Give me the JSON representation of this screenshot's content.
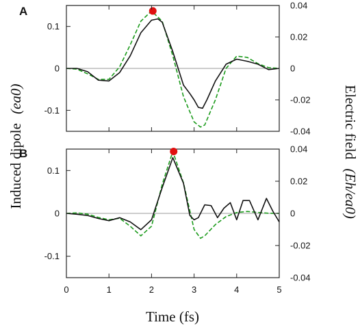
{
  "colors": {
    "dipole": "#111111",
    "field": "#1a9a1a",
    "marker": "#e01010",
    "frame": "#222222",
    "zero_line": "#999999"
  },
  "chart_data": {
    "type": "line",
    "xlabel": "Time (fs)",
    "ylabel_left": "Induced dipole",
    "ylabel_left_unit": "(ea0)",
    "ylabel_right": "Electric field",
    "ylabel_right_unit": "(Eh/ea0)",
    "xlim": [
      0,
      5
    ],
    "x_ticks": [
      0,
      1,
      2,
      3,
      4,
      5
    ],
    "x_tick_labels": [
      "0",
      "1",
      "2",
      "3",
      "4",
      "5"
    ],
    "panels": [
      {
        "label": "A",
        "ylim_left": [
          -0.15,
          0.15
        ],
        "ylim_right": [
          -0.04,
          0.04
        ],
        "left_ticks": [
          0.1,
          0,
          -0.1
        ],
        "left_tick_labels": [
          "0.1",
          "0",
          "-0.1"
        ],
        "right_ticks": [
          0.04,
          0.02,
          0,
          -0.02,
          -0.04
        ],
        "right_tick_labels": [
          "0.04",
          "0.02",
          "0",
          "-0.02",
          "-0.04"
        ],
        "series": [
          {
            "key": "dipole",
            "axis": "left",
            "style": "solid",
            "x": [
              0,
              0.25,
              0.5,
              0.75,
              1.0,
              1.25,
              1.5,
              1.75,
              2.0,
              2.15,
              2.25,
              2.5,
              2.75,
              2.9,
              3.0,
              3.1,
              3.2,
              3.3,
              3.5,
              3.75,
              4.0,
              4.25,
              4.5,
              4.75,
              5.0
            ],
            "y": [
              0,
              0,
              -0.008,
              -0.028,
              -0.03,
              -0.01,
              0.03,
              0.085,
              0.115,
              0.118,
              0.11,
              0.04,
              -0.04,
              -0.06,
              -0.075,
              -0.093,
              -0.095,
              -0.075,
              -0.03,
              0.01,
              0.022,
              0.017,
              0.01,
              -0.003,
              0
            ]
          },
          {
            "key": "field",
            "axis": "right",
            "style": "dashed",
            "x": [
              0,
              0.25,
              0.5,
              0.75,
              1.0,
              1.25,
              1.5,
              1.75,
              2.0,
              2.25,
              2.5,
              2.75,
              3.0,
              3.15,
              3.25,
              3.5,
              3.75,
              4.0,
              4.25,
              4.5,
              4.75,
              5.0
            ],
            "y": [
              0,
              -0.0005,
              -0.0035,
              -0.007,
              -0.007,
              0.001,
              0.015,
              0.03,
              0.0365,
              0.03,
              0.008,
              -0.018,
              -0.034,
              -0.0373,
              -0.036,
              -0.02,
              0.0,
              0.0078,
              0.007,
              0.003,
              0.0005,
              0
            ]
          }
        ],
        "marker": {
          "x": 2.03,
          "y": 0.0365,
          "axis": "right"
        }
      },
      {
        "label": "B",
        "ylim_left": [
          -0.15,
          0.15
        ],
        "ylim_right": [
          -0.04,
          0.04
        ],
        "left_ticks": [
          0.1,
          0,
          -0.1
        ],
        "left_tick_labels": [
          "0.1",
          "0",
          "-0.1"
        ],
        "right_ticks": [
          0.04,
          0.02,
          0,
          -0.02,
          -0.04
        ],
        "right_tick_labels": [
          "0.04",
          "0.02",
          "0",
          "-0.02",
          "-0.04"
        ],
        "series": [
          {
            "key": "dipole",
            "axis": "left",
            "style": "solid",
            "x": [
              0,
              0.25,
              0.5,
              0.75,
              1.0,
              1.25,
              1.5,
              1.75,
              2.0,
              2.25,
              2.5,
              2.75,
              2.9,
              3.0,
              3.1,
              3.25,
              3.4,
              3.55,
              3.7,
              3.85,
              4.0,
              4.15,
              4.3,
              4.5,
              4.7,
              4.85,
              5.0
            ],
            "y": [
              0,
              -0.002,
              -0.005,
              -0.012,
              -0.017,
              -0.01,
              -0.02,
              -0.038,
              -0.015,
              0.06,
              0.13,
              0.07,
              -0.005,
              -0.015,
              -0.01,
              0.02,
              0.018,
              -0.01,
              0.012,
              0.025,
              -0.015,
              0.03,
              0.03,
              -0.015,
              0.035,
              0.005,
              -0.02
            ]
          },
          {
            "key": "field",
            "axis": "right",
            "style": "dashed",
            "x": [
              0,
              0.25,
              0.5,
              0.75,
              1.0,
              1.25,
              1.5,
              1.75,
              2.0,
              2.25,
              2.5,
              2.75,
              3.0,
              3.15,
              3.25,
              3.5,
              3.75,
              4.0,
              4.25,
              4.5,
              4.75,
              5.0
            ],
            "y": [
              0,
              0.0003,
              -0.0005,
              -0.0025,
              -0.004,
              -0.003,
              -0.008,
              -0.014,
              -0.008,
              0.018,
              0.0385,
              0.019,
              -0.01,
              -0.0155,
              -0.014,
              -0.007,
              -0.002,
              0.0005,
              0.0012,
              0.0006,
              0.0001,
              0
            ]
          }
        ],
        "marker": {
          "x": 2.52,
          "y": 0.0385,
          "axis": "right"
        }
      }
    ]
  }
}
